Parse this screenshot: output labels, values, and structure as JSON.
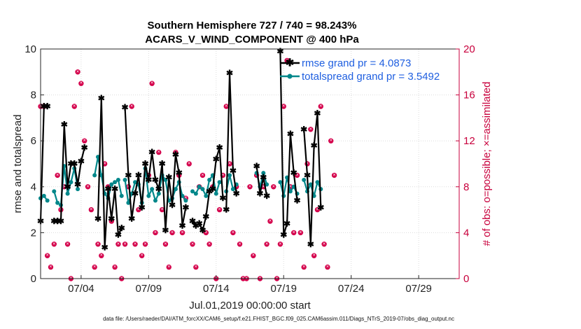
{
  "chart_data": {
    "type": "line",
    "title_line1": "Southern Hemisphere 727 / 740 = 98.243%",
    "title_line2": "ACARS_V_WIND_COMPONENT @ 400 hPa",
    "xlabel": "Jul.01,2019 00:00:00 start",
    "ylabel_left": "rmse and totalspread",
    "ylabel_right": "# of obs: o=possible; ×=assimilated",
    "footer": "data file: /Users/raeder/DAI/ATM_forcXX/CAM6_setup/f.e21.FHIST_BGC.f09_025.CAM6assim.011/Diags_NTrS_2019-07/obs_diag_output.nc",
    "x_range_days": [
      1.0,
      32.0
    ],
    "ylim_left": [
      0,
      10
    ],
    "ylim_right": [
      0,
      20
    ],
    "x_ticks": [
      {
        "day": 4,
        "label": "07/04"
      },
      {
        "day": 9,
        "label": "07/09"
      },
      {
        "day": 14,
        "label": "07/14"
      },
      {
        "day": 19,
        "label": "07/19"
      },
      {
        "day": 24,
        "label": "07/24"
      },
      {
        "day": 29,
        "label": "07/29"
      }
    ],
    "y_ticks_left": [
      "0",
      "2",
      "4",
      "6",
      "8",
      "10"
    ],
    "y_ticks_right": [
      "0",
      "4",
      "8",
      "12",
      "16",
      "20"
    ],
    "colors": {
      "rmse": "#000000",
      "spread": "#00878a",
      "obs": "#d4004b",
      "legend_text": "#1f5fe0"
    },
    "legend": [
      {
        "name": "rmse grand pr = 4.0873"
      },
      {
        "name": "totalspread grand pr = 3.5492"
      }
    ],
    "x_step_days": 0.25,
    "series": [
      {
        "name": "rmse",
        "segments": [
          {
            "start": 1.0,
            "values": [
              2.5,
              7.5,
              7.5
            ]
          },
          {
            "start": 2.0,
            "values": [
              2.5,
              2.5,
              2.5,
              6.7,
              4.0,
              5.0,
              5.0,
              4.1,
              5.1,
              5.7
            ]
          },
          {
            "start": 5.25,
            "values": [
              2.6,
              7.85,
              1.35,
              3.9,
              2.6,
              3.9,
              1.9,
              2.2
            ]
          },
          {
            "start": 7.25,
            "values": [
              7.45,
              4.5,
              2.6,
              3.7,
              4.5,
              3.1,
              5.0,
              4.3,
              5.5,
              4.3,
              3.9,
              5.0,
              2.1,
              4.4,
              3.2,
              5.4,
              4.6,
              2.3,
              3.1
            ]
          },
          {
            "start": 12.25,
            "values": [
              2.5,
              2.3,
              2.4,
              2.1,
              2.7,
              3.8,
              3.9,
              5.2,
              5.7,
              3.5
            ]
          },
          {
            "start": 14.75,
            "values": [
              3.0,
              8.95,
              4.7,
              3.7
            ]
          },
          {
            "start": 17.0,
            "values": [
              4.9,
              3.7,
              4.4,
              3.6
            ]
          },
          {
            "start": 18.75,
            "values": [
              9.9,
              1.9,
              2.4,
              6.3,
              4.6,
              3.4
            ]
          },
          {
            "start": 20.5,
            "values": [
              6.5,
              4.5,
              1.5,
              5.8,
              7.2,
              3.1
            ]
          }
        ]
      },
      {
        "name": "totalspread",
        "segments": [
          {
            "start": 1.0,
            "values": [
              3.5,
              3.6,
              3.4
            ]
          },
          {
            "start": 2.0,
            "values": [
              3.8,
              3.3,
              3.2,
              4.9,
              3.7,
              4.2,
              4.8,
              3.9
            ]
          },
          {
            "start": 5.0,
            "values": [
              4.5,
              5.3,
              4.5,
              3.7,
              3.5,
              4.1,
              4.2,
              4.3,
              3.6
            ]
          },
          {
            "start": 7.25,
            "values": [
              4.3,
              3.3,
              3.7,
              4.2,
              4.1,
              3.3,
              4.8,
              3.6,
              3.9,
              3.4,
              3.7,
              4.5,
              4.3,
              3.4,
              3.5,
              3.9,
              4.2,
              3.6,
              3.4
            ]
          },
          {
            "start": 12.25,
            "values": [
              3.8,
              3.7,
              4.0,
              3.9,
              3.6,
              4.3,
              4.5,
              3.7,
              4.2
            ]
          },
          {
            "start": 14.75,
            "values": [
              3.8,
              4.5,
              3.9,
              4.1
            ]
          },
          {
            "start": 17.0,
            "values": [
              4.6,
              4.0,
              4.6,
              4.1
            ]
          },
          {
            "start": 18.75,
            "values": [
              4.2,
              3.6,
              4.4,
              3.8,
              4.0,
              3.7
            ]
          },
          {
            "start": 20.5,
            "values": [
              4.3,
              3.8,
              4.1,
              3.6,
              4.2,
              3.9
            ]
          }
        ]
      }
    ],
    "obs_count": [
      {
        "day": 1.0,
        "v": 15
      },
      {
        "day": 1.25,
        "v": 15
      },
      {
        "day": 1.5,
        "v": 2
      },
      {
        "day": 1.75,
        "v": 1
      },
      {
        "day": 2.0,
        "v": 3
      },
      {
        "day": 2.25,
        "v": 9
      },
      {
        "day": 2.5,
        "v": 6
      },
      {
        "day": 2.75,
        "v": 8
      },
      {
        "day": 3.0,
        "v": 3
      },
      {
        "day": 3.25,
        "v": 0
      },
      {
        "day": 3.5,
        "v": 15
      },
      {
        "day": 3.75,
        "v": 18
      },
      {
        "day": 4.0,
        "v": 17
      },
      {
        "day": 4.25,
        "v": 12
      },
      {
        "day": 4.5,
        "v": 8
      },
      {
        "day": 4.75,
        "v": 6
      },
      {
        "day": 5.0,
        "v": 1
      },
      {
        "day": 5.25,
        "v": 3
      },
      {
        "day": 5.5,
        "v": 2
      },
      {
        "day": 5.75,
        "v": 10
      },
      {
        "day": 6.0,
        "v": 8
      },
      {
        "day": 6.25,
        "v": 5
      },
      {
        "day": 6.5,
        "v": 1
      },
      {
        "day": 6.75,
        "v": 3
      },
      {
        "day": 7.0,
        "v": 0
      },
      {
        "day": 7.25,
        "v": 3
      },
      {
        "day": 7.5,
        "v": 8
      },
      {
        "day": 7.75,
        "v": 15
      },
      {
        "day": 8.0,
        "v": 3
      },
      {
        "day": 8.25,
        "v": 6
      },
      {
        "day": 8.5,
        "v": 2
      },
      {
        "day": 8.75,
        "v": 3
      },
      {
        "day": 9.0,
        "v": 9
      },
      {
        "day": 9.25,
        "v": 17
      },
      {
        "day": 9.5,
        "v": 4
      },
      {
        "day": 9.75,
        "v": 11
      },
      {
        "day": 10.0,
        "v": 6
      },
      {
        "day": 10.25,
        "v": 3
      },
      {
        "day": 10.5,
        "v": 1
      },
      {
        "day": 10.75,
        "v": 4
      },
      {
        "day": 11.0,
        "v": 11
      },
      {
        "day": 11.25,
        "v": 9
      },
      {
        "day": 11.5,
        "v": 4
      },
      {
        "day": 11.75,
        "v": 7
      },
      {
        "day": 12.0,
        "v": 10
      },
      {
        "day": 12.25,
        "v": 3
      },
      {
        "day": 12.5,
        "v": 1
      },
      {
        "day": 12.75,
        "v": 8
      },
      {
        "day": 13.0,
        "v": 9
      },
      {
        "day": 13.25,
        "v": 4
      },
      {
        "day": 13.5,
        "v": 3
      },
      {
        "day": 13.75,
        "v": 8
      },
      {
        "day": 14.0,
        "v": 0
      },
      {
        "day": 14.25,
        "v": 6
      },
      {
        "day": 14.5,
        "v": 9
      },
      {
        "day": 14.75,
        "v": 15
      },
      {
        "day": 15.0,
        "v": 10
      },
      {
        "day": 15.25,
        "v": 4
      },
      {
        "day": 15.5,
        "v": 8
      },
      {
        "day": 15.75,
        "v": 3
      },
      {
        "day": 16.0,
        "v": 0
      },
      {
        "day": 16.25,
        "v": 0
      },
      {
        "day": 16.5,
        "v": 8
      },
      {
        "day": 16.75,
        "v": 2
      },
      {
        "day": 17.0,
        "v": 9
      },
      {
        "day": 17.25,
        "v": 0
      },
      {
        "day": 17.5,
        "v": 8
      },
      {
        "day": 17.75,
        "v": 3
      },
      {
        "day": 18.0,
        "v": 5
      },
      {
        "day": 18.25,
        "v": 8
      },
      {
        "day": 18.5,
        "v": 0
      },
      {
        "day": 18.75,
        "v": 3
      },
      {
        "day": 19.0,
        "v": 15
      },
      {
        "day": 19.25,
        "v": 19
      },
      {
        "day": 19.5,
        "v": 8
      },
      {
        "day": 19.75,
        "v": 4
      },
      {
        "day": 20.0,
        "v": 9
      },
      {
        "day": 20.25,
        "v": 4
      },
      {
        "day": 20.5,
        "v": 1
      },
      {
        "day": 20.75,
        "v": 10
      },
      {
        "day": 21.0,
        "v": 13
      },
      {
        "day": 21.25,
        "v": 2
      },
      {
        "day": 21.5,
        "v": 6
      },
      {
        "day": 21.75,
        "v": 15
      },
      {
        "day": 22.0,
        "v": 3
      },
      {
        "day": 22.25,
        "v": 1
      },
      {
        "day": 22.5,
        "v": 12
      },
      {
        "day": 22.75,
        "v": 9
      }
    ]
  }
}
